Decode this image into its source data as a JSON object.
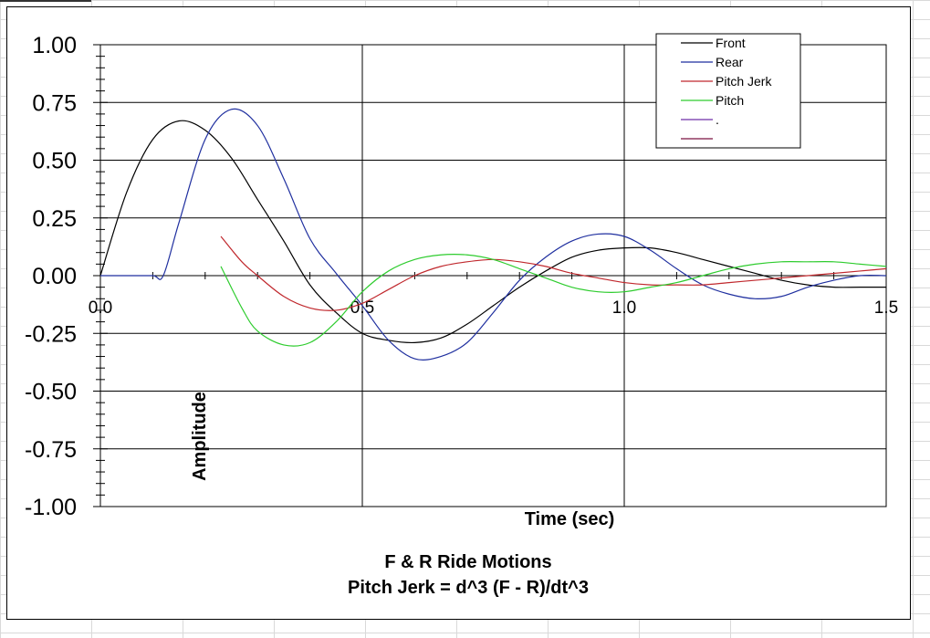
{
  "chart_data": {
    "type": "line",
    "title": "F & R Ride Motions",
    "subtitle": "Pitch Jerk = d^3 (F - R)/dt^3",
    "xlabel": "Time (sec)",
    "ylabel": "Amplitude",
    "xlim": [
      0,
      1.5
    ],
    "ylim": [
      -1.0,
      1.0
    ],
    "x_ticks": [
      "0.0",
      "0.5",
      "1.0",
      "1.5"
    ],
    "y_ticks": [
      "1.00",
      "0.75",
      "0.50",
      "0.25",
      "0.00",
      "-0.25",
      "-0.50",
      "-0.75",
      "-1.00"
    ],
    "grid": true,
    "legend_position": "top-right",
    "series": [
      {
        "name": "Front",
        "color": "#000000",
        "x": [
          0.0,
          0.05,
          0.1,
          0.15,
          0.2,
          0.25,
          0.3,
          0.35,
          0.4,
          0.45,
          0.5,
          0.55,
          0.6,
          0.65,
          0.7,
          0.75,
          0.8,
          0.85,
          0.9,
          0.95,
          1.0,
          1.05,
          1.1,
          1.15,
          1.2,
          1.25,
          1.3,
          1.35,
          1.4,
          1.45,
          1.5
        ],
        "y": [
          0.0,
          0.36,
          0.59,
          0.67,
          0.63,
          0.51,
          0.33,
          0.15,
          -0.04,
          -0.16,
          -0.25,
          -0.28,
          -0.29,
          -0.27,
          -0.21,
          -0.13,
          -0.05,
          0.02,
          0.08,
          0.11,
          0.12,
          0.12,
          0.1,
          0.07,
          0.04,
          0.01,
          -0.02,
          -0.04,
          -0.05,
          -0.05,
          -0.05
        ]
      },
      {
        "name": "Rear",
        "color": "#1f2f9f",
        "x": [
          0.0,
          0.05,
          0.1,
          0.12,
          0.15,
          0.2,
          0.25,
          0.3,
          0.35,
          0.4,
          0.45,
          0.5,
          0.55,
          0.6,
          0.65,
          0.7,
          0.75,
          0.8,
          0.85,
          0.9,
          0.95,
          1.0,
          1.05,
          1.1,
          1.15,
          1.2,
          1.25,
          1.3,
          1.35,
          1.4,
          1.45,
          1.5
        ],
        "y": [
          0.0,
          0.0,
          0.0,
          0.0,
          0.23,
          0.59,
          0.72,
          0.65,
          0.42,
          0.16,
          0.01,
          -0.13,
          -0.28,
          -0.36,
          -0.35,
          -0.29,
          -0.16,
          -0.02,
          0.08,
          0.15,
          0.18,
          0.17,
          0.11,
          0.03,
          -0.04,
          -0.08,
          -0.1,
          -0.09,
          -0.05,
          -0.02,
          0.0,
          0.0
        ]
      },
      {
        "name": "Pitch Jerk",
        "color": "#c0282d",
        "x": [
          0.23,
          0.27,
          0.3,
          0.35,
          0.4,
          0.45,
          0.5,
          0.55,
          0.6,
          0.65,
          0.7,
          0.75,
          0.8,
          0.85,
          0.9,
          0.95,
          1.0,
          1.05,
          1.1,
          1.15,
          1.2,
          1.25,
          1.3,
          1.35,
          1.4,
          1.45,
          1.5
        ],
        "y": [
          0.17,
          0.06,
          0.0,
          -0.09,
          -0.14,
          -0.15,
          -0.12,
          -0.06,
          0.0,
          0.04,
          0.06,
          0.07,
          0.06,
          0.04,
          0.01,
          -0.01,
          -0.03,
          -0.04,
          -0.04,
          -0.04,
          -0.03,
          -0.02,
          -0.01,
          0.0,
          0.01,
          0.02,
          0.03
        ]
      },
      {
        "name": "Pitch",
        "color": "#2ecc2e",
        "x": [
          0.23,
          0.27,
          0.3,
          0.35,
          0.4,
          0.45,
          0.5,
          0.55,
          0.6,
          0.65,
          0.7,
          0.75,
          0.8,
          0.85,
          0.9,
          0.95,
          1.0,
          1.05,
          1.1,
          1.15,
          1.2,
          1.25,
          1.3,
          1.35,
          1.4,
          1.45,
          1.5
        ],
        "y": [
          0.04,
          -0.14,
          -0.24,
          -0.3,
          -0.29,
          -0.2,
          -0.07,
          0.02,
          0.07,
          0.09,
          0.09,
          0.07,
          0.03,
          -0.01,
          -0.05,
          -0.07,
          -0.07,
          -0.05,
          -0.03,
          0.0,
          0.03,
          0.05,
          0.06,
          0.06,
          0.06,
          0.05,
          0.04
        ]
      },
      {
        "name": ".",
        "color": "#6f2fa8",
        "x": [],
        "y": []
      },
      {
        "name": "",
        "color": "#7a1040",
        "x": [],
        "y": []
      }
    ]
  }
}
